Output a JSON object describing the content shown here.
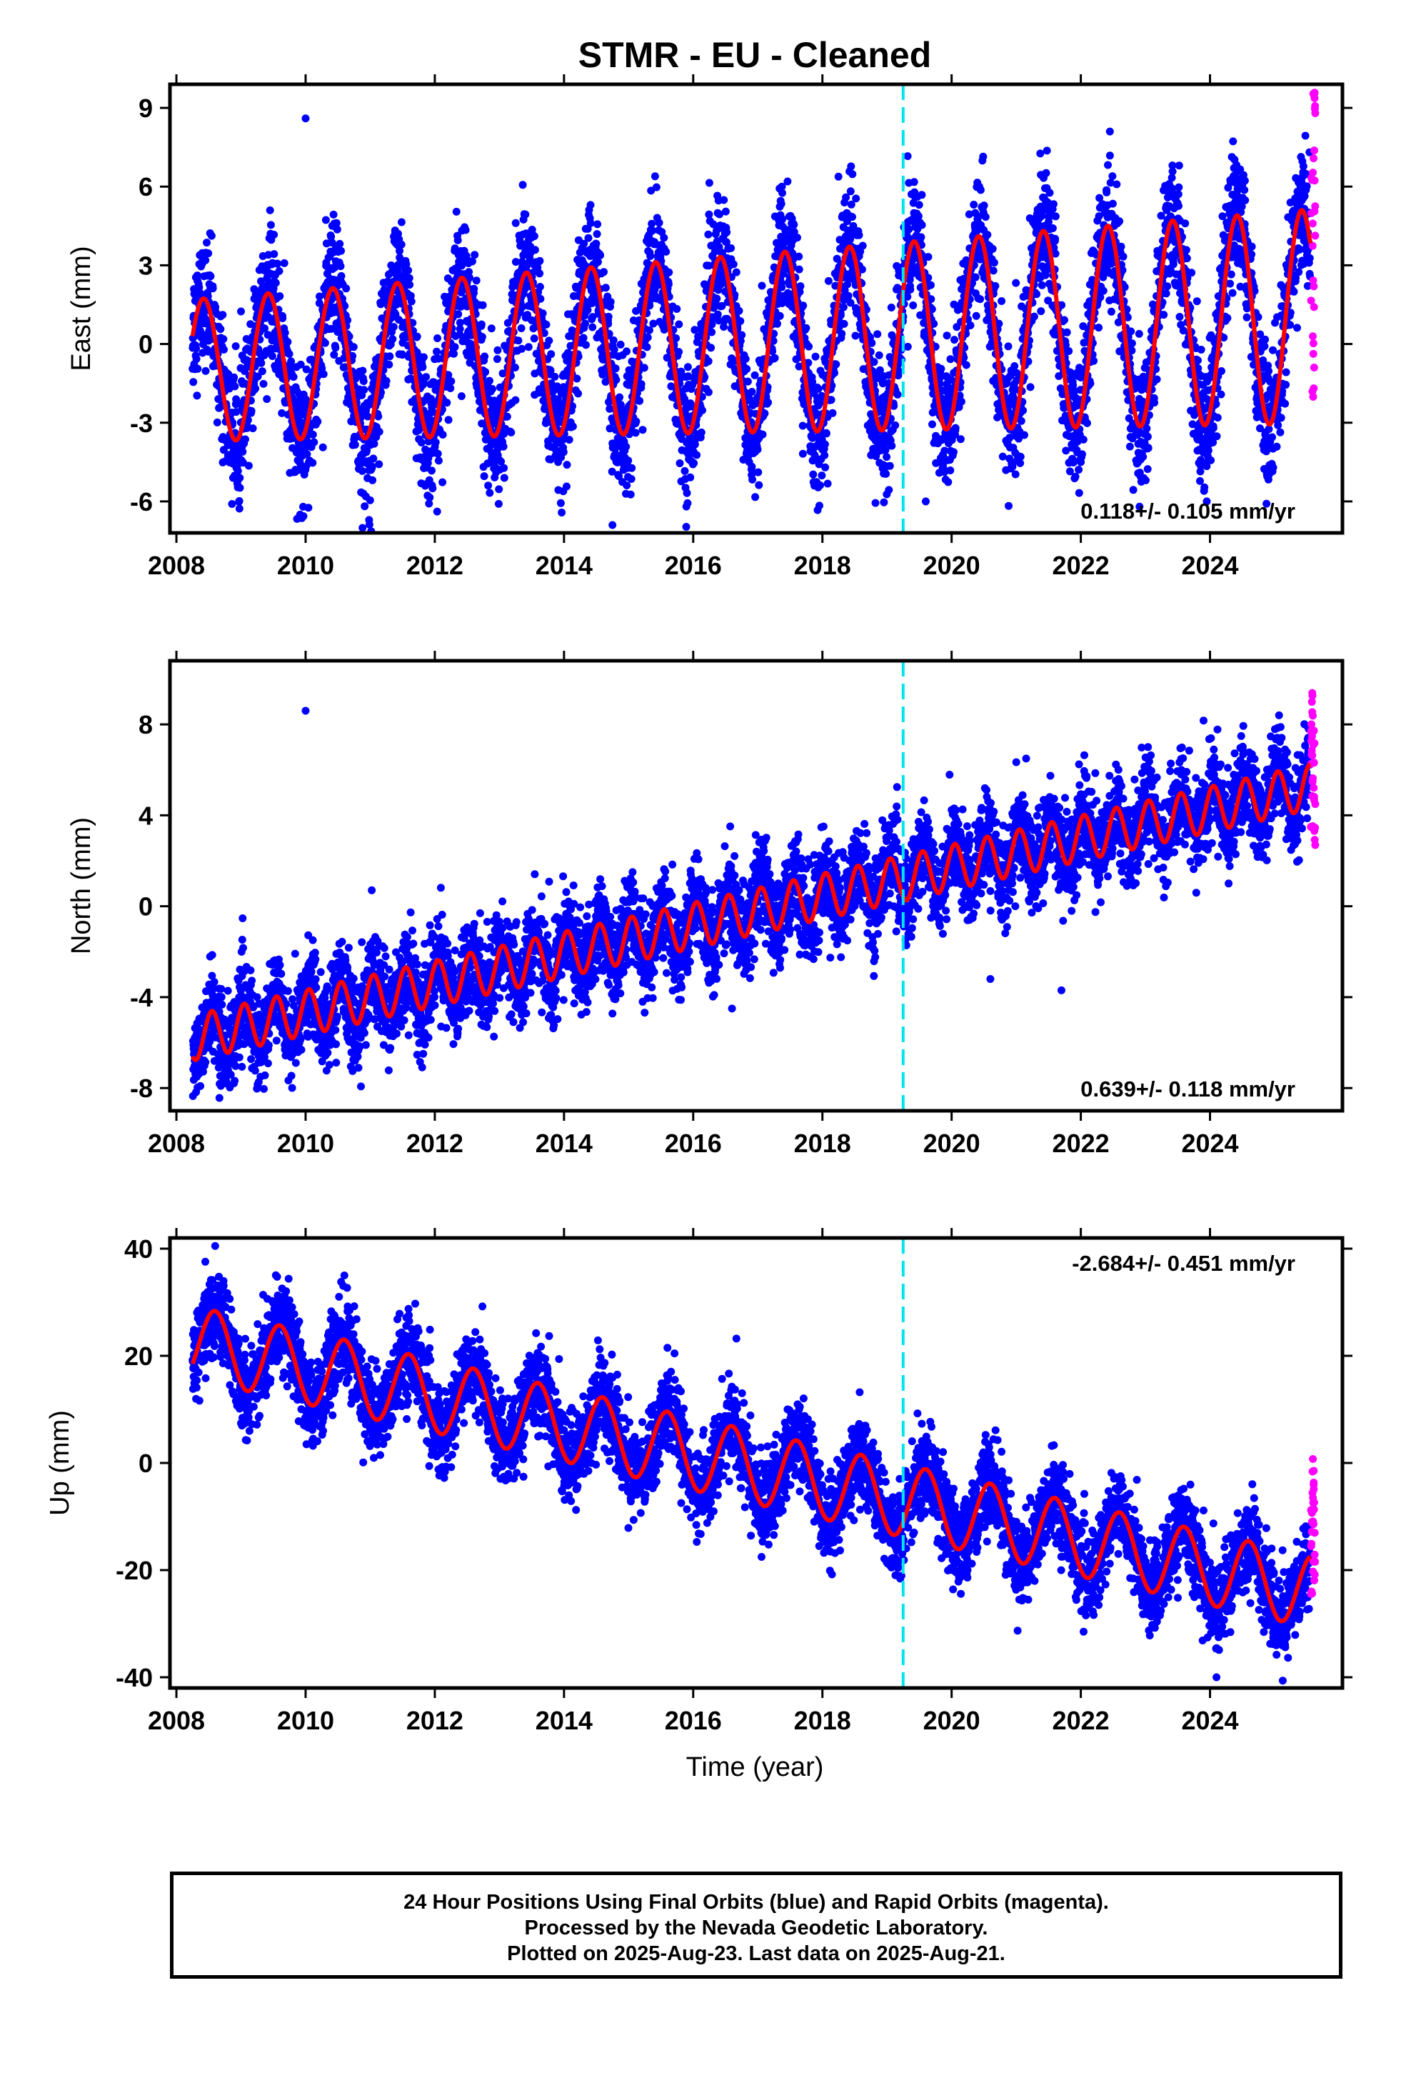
{
  "title": "STMR  - EU - Cleaned",
  "xlabel": "Time (year)",
  "caption": {
    "line1": "24 Hour Positions Using Final Orbits (blue) and Rapid Orbits (magenta).",
    "line2": "Processed by the Nevada Geodetic Laboratory.",
    "line3": "Plotted on 2025-Aug-23. Last data on 2025-Aug-21."
  },
  "colors": {
    "final_orbits": "#0000ff",
    "rapid_orbits": "#ff00ff",
    "model_fit": "#ff0000",
    "equipment_change": "#00e5ee"
  },
  "chart_data": [
    {
      "type": "scatter",
      "component": "east",
      "ylabel": "East (mm)",
      "xlim": [
        2007.9,
        2026.05
      ],
      "ylim": [
        -7.2,
        9.9
      ],
      "yticks": [
        -6,
        -3,
        0,
        3,
        6,
        9
      ],
      "xticks": [
        2008,
        2010,
        2012,
        2014,
        2016,
        2018,
        2020,
        2022,
        2024
      ],
      "rate_label": "0.118+/- 0.105 mm/yr",
      "rate_label_position": "bottom-right",
      "data_range": [
        2008.25,
        2025.55
      ],
      "equipment_change_year": 2019.25,
      "model": {
        "offset": -1.0,
        "rate": 0.118,
        "t0": 2008.25,
        "amplitude": 2.7,
        "amplitude_growth": 0.08,
        "period": 1.0,
        "peak_phase": 0.42
      },
      "scatter_noise": 1.2,
      "outliers": [
        [
          2010.0,
          8.6
        ],
        [
          2022.45,
          8.1
        ],
        [
          2014.75,
          -6.9
        ],
        [
          2019.6,
          -6.0
        ],
        [
          2023.95,
          -6.0
        ]
      ],
      "rapid": {
        "x_range": [
          2025.56,
          2025.63
        ],
        "y_range": [
          -2.3,
          9.6
        ]
      }
    },
    {
      "type": "scatter",
      "component": "north",
      "ylabel": "North (mm)",
      "xlim": [
        2007.9,
        2026.05
      ],
      "ylim": [
        -9.0,
        10.8
      ],
      "yticks": [
        -8,
        -4,
        0,
        4,
        8
      ],
      "xticks": [
        2008,
        2010,
        2012,
        2014,
        2016,
        2018,
        2020,
        2022,
        2024
      ],
      "rate_label": "0.639+/- 0.118 mm/yr",
      "rate_label_position": "bottom-right",
      "data_range": [
        2008.25,
        2025.55
      ],
      "equipment_change_year": 2019.25,
      "model": {
        "offset": -5.8,
        "rate": 0.639,
        "t0": 2008.25,
        "amplitude": 1.0,
        "amplitude_growth": 0.0,
        "period": 0.5,
        "peak_phase": 0.05
      },
      "scatter_noise": 1.0,
      "outliers": [
        [
          2010.0,
          8.6
        ],
        [
          2021.7,
          -3.7
        ],
        [
          2020.6,
          -3.2
        ],
        [
          2016.6,
          -4.5
        ]
      ],
      "rapid": {
        "x_range": [
          2025.56,
          2025.63
        ],
        "y_range": [
          2.4,
          9.7
        ]
      }
    },
    {
      "type": "scatter",
      "component": "up",
      "ylabel": "Up (mm)",
      "xlim": [
        2007.9,
        2026.05
      ],
      "ylim": [
        -42,
        42
      ],
      "yticks": [
        -40,
        -20,
        0,
        20,
        40
      ],
      "xticks": [
        2008,
        2010,
        2012,
        2014,
        2016,
        2018,
        2020,
        2022,
        2024
      ],
      "rate_label": "-2.684+/- 0.451 mm/yr",
      "rate_label_position": "top-right",
      "data_range": [
        2008.25,
        2025.55
      ],
      "equipment_change_year": 2019.25,
      "model": {
        "offset": 22.5,
        "rate": -2.684,
        "t0": 2008.25,
        "amplitude": 6.8,
        "amplitude_growth": 0.0,
        "period": 1.0,
        "peak_phase": 0.6
      },
      "scatter_noise": 4.0,
      "outliers": [
        [
          2008.6,
          40.5
        ],
        [
          2024.1,
          -40.0
        ],
        [
          2010.6,
          35.0
        ]
      ],
      "rapid": {
        "x_range": [
          2025.56,
          2025.63
        ],
        "y_range": [
          -25,
          2
        ]
      }
    }
  ]
}
